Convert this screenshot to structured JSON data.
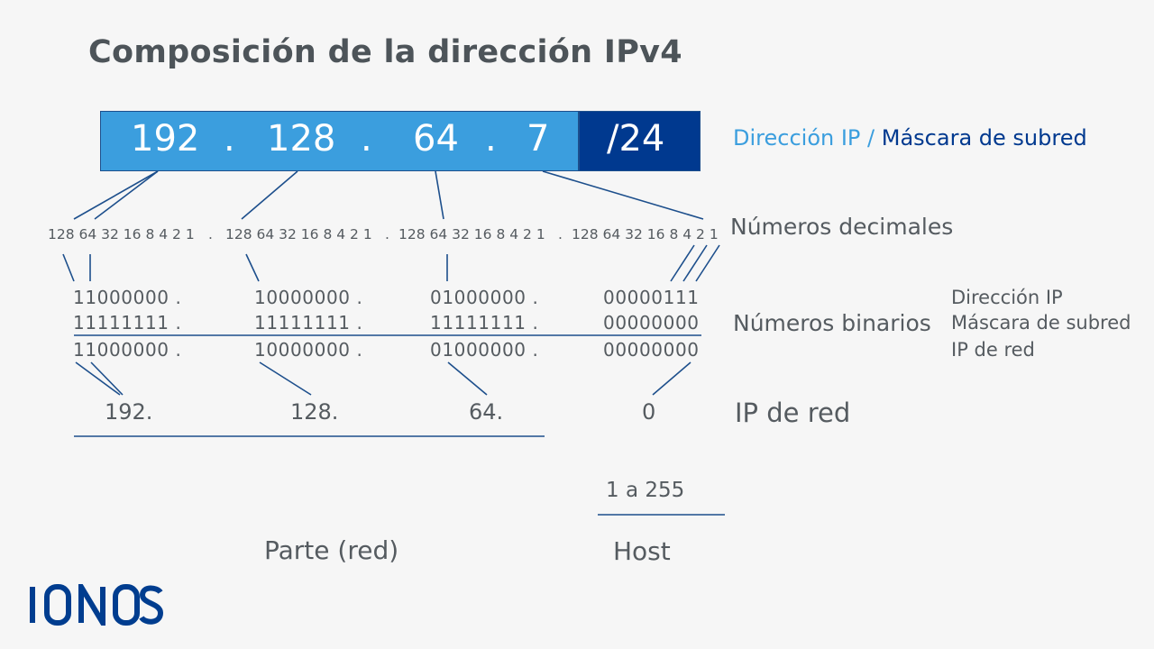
{
  "title": "Composición de la dirección IPv4",
  "ip": {
    "octets": [
      "192",
      "128",
      "64",
      "7"
    ],
    "dot": ".",
    "mask": "/24"
  },
  "legend": {
    "ip_part": "Dirección IP /",
    "mask_part": "Máscara de subred"
  },
  "decimal_row": {
    "groups": [
      "128 64 32 16 8 4 2 1",
      "128 64 32 16 8 4 2 1",
      "128 64 32 16 8 4 2 1",
      "128 64 32 16 8 4 2 1"
    ],
    "dot": "."
  },
  "binary": {
    "ip": [
      "11000000 .",
      "10000000 .",
      "01000000 .",
      "00000111"
    ],
    "mask": [
      "11111111 .",
      "11111111 .",
      "11111111 .",
      "00000000"
    ],
    "network": [
      "11000000 .",
      "10000000 .",
      "01000000 .",
      "00000000"
    ]
  },
  "network_ip": [
    "192.",
    "128.",
    "64.",
    "0"
  ],
  "labels": {
    "decimal_numbers": "Números decimales",
    "binary_numbers": "Números binarios",
    "network_ip": "IP de red",
    "side_ip": "Dirección IP",
    "side_mask": "Máscara de subred",
    "side_network": "IP de red",
    "host_range": "1 a 255",
    "network_part": "Parte (red)",
    "host": "Host"
  },
  "logo": "IONOS",
  "colors": {
    "ip_blue": "#3b9ede",
    "mask_navy": "#00398f",
    "line_blue": "#1d4f8c",
    "text_gray": "#555b60"
  }
}
